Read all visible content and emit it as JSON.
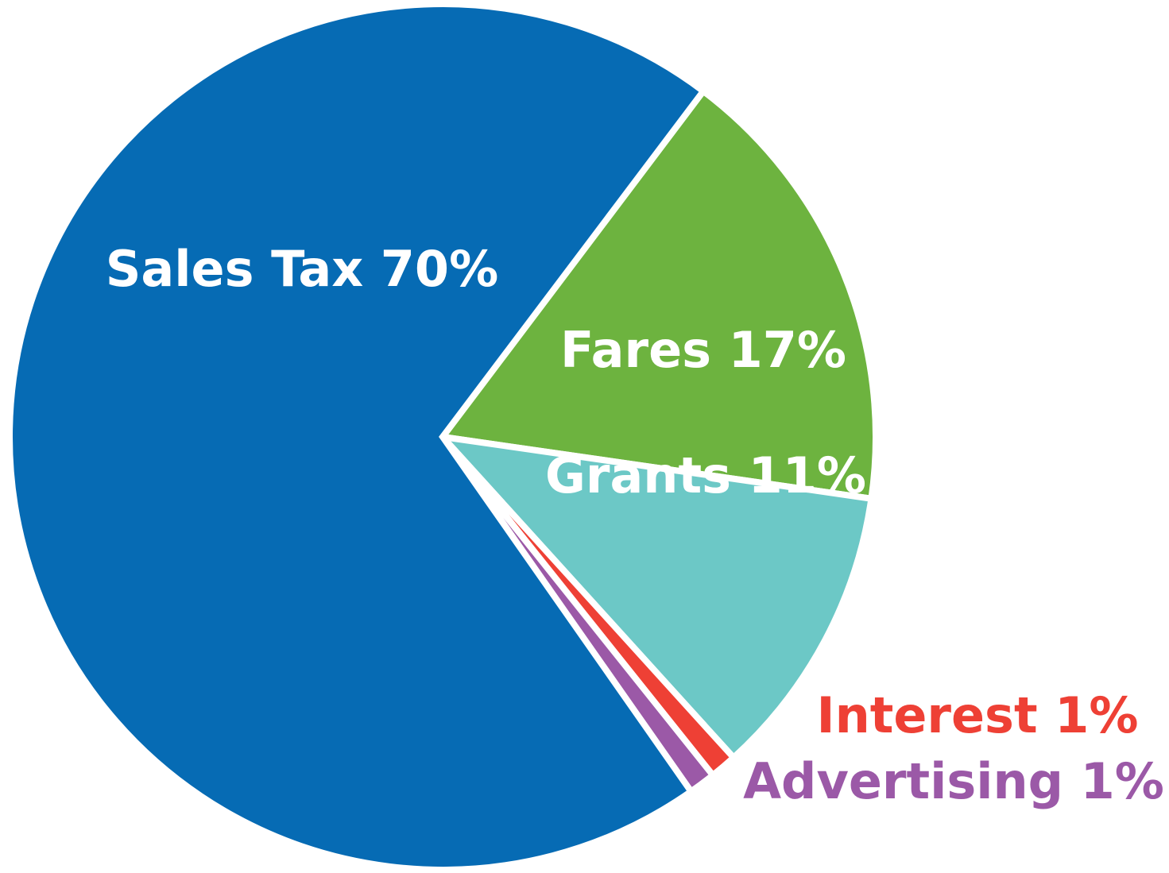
{
  "chart_data": {
    "type": "pie",
    "categories": [
      "Fares",
      "Grants",
      "Interest",
      "Advertising",
      "Sales Tax"
    ],
    "values": [
      17,
      11,
      1,
      1,
      70
    ],
    "value_labels": [
      "17%",
      "11%",
      "1%",
      "1%",
      "70%"
    ],
    "colors": [
      "#6db33f",
      "#6cc8c6",
      "#ee4035",
      "#9b59a7",
      "#066bb4"
    ]
  }
}
